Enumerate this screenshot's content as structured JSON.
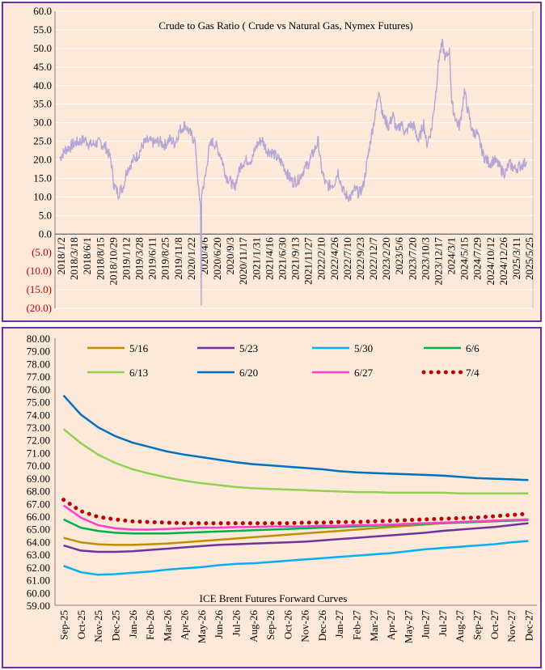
{
  "chart_data": [
    {
      "type": "line",
      "title": "Crude to Gas Ratio ( Crude vs Natural Gas, Nymex Futures)",
      "ylim": [
        -20,
        60
      ],
      "grid": true,
      "y_ticks": [
        "60.0",
        "55.0",
        "50.0",
        "45.0",
        "40.0",
        "35.0",
        "30.0",
        "25.0",
        "20.0",
        "15.0",
        "10.0",
        "5.0",
        "0.0",
        "(5.0)",
        "(10.0)",
        "(15.0)",
        "(20.0)"
      ],
      "x_tick_labels": [
        "2018/1/2",
        "2018/3/18",
        "2018/6/1",
        "2018/8/15",
        "2018/10/29",
        "2019/1/12",
        "2019/3/28",
        "2019/6/11",
        "2019/8/25",
        "2019/11/8",
        "2020/1/22",
        "2020/4/6",
        "2020/6/20",
        "2020/9/3",
        "2020/11/17",
        "2021/1/31",
        "2021/4/16",
        "2021/6/30",
        "2021/9/13",
        "2021/11/27",
        "2022/2/10",
        "2022/4/26",
        "2022/7/10",
        "2022/9/23",
        "2022/12/7",
        "2023/2/20",
        "2023/5/6",
        "2023/7/20",
        "2023/10/3",
        "2023/12/17",
        "2024/3/1",
        "2024/5/15",
        "2024/7/29",
        "2024/10/12",
        "2024/12/26",
        "2025/3/11",
        "2025/5/25"
      ],
      "series": [
        {
          "color": "#b4a7d6",
          "points": [
            [
              "2018-01-02",
              20.5
            ],
            [
              "2018-02-01",
              22.5
            ],
            [
              "2018-03-01",
              23.5
            ],
            [
              "2018-04-01",
              24.5
            ],
            [
              "2018-05-01",
              25
            ],
            [
              "2018-06-01",
              25.5
            ],
            [
              "2018-07-01",
              24
            ],
            [
              "2018-08-01",
              24.5
            ],
            [
              "2018-09-01",
              24.5
            ],
            [
              "2018-10-01",
              23.5
            ],
            [
              "2018-11-01",
              20
            ],
            [
              "2018-11-20",
              13
            ],
            [
              "2018-12-15",
              11
            ],
            [
              "2019-01-15",
              13
            ],
            [
              "2019-02-01",
              17
            ],
            [
              "2019-03-15",
              20
            ],
            [
              "2019-04-15",
              21.5
            ],
            [
              "2019-05-15",
              24.5
            ],
            [
              "2019-06-15",
              25
            ],
            [
              "2019-07-15",
              24.5
            ],
            [
              "2019-08-15",
              25
            ],
            [
              "2019-09-15",
              24
            ],
            [
              "2019-10-15",
              25.5
            ],
            [
              "2019-11-15",
              24.5
            ],
            [
              "2019-12-15",
              28
            ],
            [
              "2020-01-15",
              29.5
            ],
            [
              "2020-02-15",
              27
            ],
            [
              "2020-03-15",
              25
            ],
            [
              "2020-04-01",
              13
            ],
            [
              "2020-04-15",
              8
            ],
            [
              "2020-04-20",
              -19.5
            ],
            [
              "2020-04-22",
              11
            ],
            [
              "2020-05-15",
              15.5
            ],
            [
              "2020-06-01",
              22
            ],
            [
              "2020-06-20",
              25
            ],
            [
              "2020-07-15",
              24
            ],
            [
              "2020-08-15",
              21
            ],
            [
              "2020-09-15",
              15.5
            ],
            [
              "2020-10-15",
              14
            ],
            [
              "2020-11-01",
              12
            ],
            [
              "2020-11-17",
              15
            ],
            [
              "2020-12-15",
              19
            ],
            [
              "2021-01-15",
              20
            ],
            [
              "2021-02-15",
              20
            ],
            [
              "2021-03-15",
              24
            ],
            [
              "2021-04-15",
              25.5
            ],
            [
              "2021-05-15",
              22.5
            ],
            [
              "2021-06-15",
              22
            ],
            [
              "2021-07-15",
              20.5
            ],
            [
              "2021-08-15",
              19
            ],
            [
              "2021-09-15",
              16
            ],
            [
              "2021-10-15",
              14
            ],
            [
              "2021-11-15",
              14.5
            ],
            [
              "2021-12-15",
              17
            ],
            [
              "2022-01-15",
              19
            ],
            [
              "2022-02-15",
              22
            ],
            [
              "2022-03-15",
              25
            ],
            [
              "2022-04-01",
              18
            ],
            [
              "2022-04-26",
              13.5
            ],
            [
              "2022-05-15",
              13
            ],
            [
              "2022-06-15",
              13.5
            ],
            [
              "2022-07-10",
              17
            ],
            [
              "2022-08-01",
              13
            ],
            [
              "2022-08-20",
              10.5
            ],
            [
              "2022-09-23",
              10
            ],
            [
              "2022-10-20",
              12
            ],
            [
              "2022-11-15",
              11
            ],
            [
              "2022-12-07",
              13
            ],
            [
              "2023-01-01",
              20
            ],
            [
              "2023-01-25",
              27
            ],
            [
              "2023-02-20",
              33
            ],
            [
              "2023-03-10",
              39.5
            ],
            [
              "2023-04-01",
              32
            ],
            [
              "2023-05-06",
              29
            ],
            [
              "2023-06-01",
              32
            ],
            [
              "2023-06-25",
              27.5
            ],
            [
              "2023-07-20",
              30
            ],
            [
              "2023-08-15",
              27
            ],
            [
              "2023-09-10",
              29.5
            ],
            [
              "2023-10-03",
              29
            ],
            [
              "2023-11-01",
              25
            ],
            [
              "2023-12-01",
              30
            ],
            [
              "2023-12-17",
              24
            ],
            [
              "2024-01-15",
              28
            ],
            [
              "2024-02-10",
              38
            ],
            [
              "2024-03-01",
              48
            ],
            [
              "2024-03-20",
              51
            ],
            [
              "2024-04-10",
              47
            ],
            [
              "2024-05-01",
              50
            ],
            [
              "2024-05-15",
              35
            ],
            [
              "2024-06-15",
              30
            ],
            [
              "2024-07-01",
              29
            ],
            [
              "2024-07-29",
              38.5
            ],
            [
              "2024-08-20",
              33
            ],
            [
              "2024-09-15",
              27.5
            ],
            [
              "2024-10-12",
              27
            ],
            [
              "2024-11-01",
              24
            ],
            [
              "2024-11-20",
              21
            ],
            [
              "2024-12-26",
              19
            ],
            [
              "2025-01-20",
              20
            ],
            [
              "2025-02-10",
              19
            ],
            [
              "2025-03-11",
              17
            ],
            [
              "2025-04-01",
              16.5
            ],
            [
              "2025-04-20",
              19
            ],
            [
              "2025-05-25",
              17.5
            ],
            [
              "2025-07-01",
              18.5
            ],
            [
              "2025-08-01",
              19.5
            ]
          ]
        }
      ]
    },
    {
      "type": "line",
      "title": "ICE Brent Futures Forward Curves",
      "ylim": [
        59,
        80
      ],
      "grid": false,
      "legend_position": "top",
      "categories": [
        "Sep-25",
        "Oct-25",
        "Nov-25",
        "Dec-25",
        "Jan-26",
        "Feb-26",
        "Mar-26",
        "Apr-26",
        "May-26",
        "Jun-26",
        "Jul-26",
        "Aug-26",
        "Sep-26",
        "Oct-26",
        "Nov-26",
        "Dec-26",
        "Jan-27",
        "Feb-27",
        "Mar-27",
        "Apr-27",
        "May-27",
        "Jun-27",
        "Jul-27",
        "Aug-27",
        "Sep-27",
        "Oct-27",
        "Nov-27",
        "Dec-27"
      ],
      "y_ticks": [
        "80.00",
        "79.00",
        "78.00",
        "77.00",
        "76.00",
        "75.00",
        "74.00",
        "73.00",
        "72.00",
        "71.00",
        "70.00",
        "69.00",
        "68.00",
        "67.00",
        "66.00",
        "65.00",
        "64.00",
        "63.00",
        "62.00",
        "61.00",
        "60.00",
        "59.00"
      ],
      "series": [
        {
          "name": "5/16",
          "color": "#bf8f00",
          "dotted": false,
          "values": [
            64.3,
            63.95,
            63.8,
            63.75,
            63.75,
            63.8,
            63.85,
            63.95,
            64.05,
            64.15,
            64.25,
            64.35,
            64.45,
            64.55,
            64.65,
            64.75,
            64.85,
            64.95,
            65.05,
            65.15,
            65.25,
            65.35,
            65.45,
            65.55,
            65.6,
            65.65,
            65.7,
            65.75
          ]
        },
        {
          "name": "5/23",
          "color": "#7030a0",
          "dotted": false,
          "values": [
            63.7,
            63.3,
            63.2,
            63.2,
            63.25,
            63.35,
            63.45,
            63.55,
            63.65,
            63.75,
            63.8,
            63.85,
            63.9,
            63.95,
            64.0,
            64.1,
            64.2,
            64.3,
            64.4,
            64.5,
            64.6,
            64.7,
            64.85,
            64.95,
            65.05,
            65.15,
            65.3,
            65.45
          ]
        },
        {
          "name": "5/30",
          "color": "#00b0f0",
          "dotted": false,
          "values": [
            62.1,
            61.6,
            61.4,
            61.45,
            61.55,
            61.65,
            61.8,
            61.9,
            62.0,
            62.15,
            62.25,
            62.3,
            62.4,
            62.5,
            62.6,
            62.7,
            62.8,
            62.9,
            63.0,
            63.1,
            63.25,
            63.4,
            63.5,
            63.6,
            63.7,
            63.8,
            63.95,
            64.05
          ]
        },
        {
          "name": "6/6",
          "color": "#00b050",
          "dotted": false,
          "values": [
            65.75,
            65.1,
            64.85,
            64.7,
            64.65,
            64.65,
            64.65,
            64.7,
            64.75,
            64.8,
            64.85,
            64.9,
            64.95,
            65.0,
            65.05,
            65.1,
            65.15,
            65.2,
            65.25,
            65.3,
            65.35,
            65.4,
            65.45,
            65.5,
            65.55,
            65.6,
            65.65,
            65.7
          ]
        },
        {
          "name": "6/13",
          "color": "#92d050",
          "dotted": false,
          "values": [
            72.85,
            71.75,
            70.85,
            70.2,
            69.7,
            69.35,
            69.05,
            68.8,
            68.6,
            68.45,
            68.3,
            68.2,
            68.15,
            68.1,
            68.05,
            68.0,
            67.95,
            67.9,
            67.9,
            67.85,
            67.85,
            67.85,
            67.85,
            67.8,
            67.8,
            67.8,
            67.8,
            67.8
          ]
        },
        {
          "name": "6/20",
          "color": "#0070c0",
          "dotted": false,
          "values": [
            75.5,
            74.0,
            73.0,
            72.3,
            71.8,
            71.45,
            71.1,
            70.85,
            70.65,
            70.45,
            70.25,
            70.1,
            70.0,
            69.9,
            69.8,
            69.7,
            69.55,
            69.45,
            69.4,
            69.35,
            69.3,
            69.25,
            69.2,
            69.1,
            69.0,
            68.95,
            68.9,
            68.85
          ]
        },
        {
          "name": "6/27",
          "color": "#ff3fc8",
          "dotted": false,
          "values": [
            66.85,
            65.9,
            65.3,
            65.05,
            64.95,
            64.95,
            65.0,
            65.05,
            65.1,
            65.1,
            65.15,
            65.15,
            65.2,
            65.2,
            65.2,
            65.25,
            65.25,
            65.3,
            65.3,
            65.35,
            65.4,
            65.45,
            65.5,
            65.55,
            65.6,
            65.65,
            65.7,
            65.75
          ]
        },
        {
          "name": "7/4",
          "color": "#c00000",
          "dotted": true,
          "values": [
            67.3,
            66.4,
            65.95,
            65.75,
            65.6,
            65.55,
            65.5,
            65.45,
            65.45,
            65.45,
            65.45,
            65.45,
            65.45,
            65.45,
            65.5,
            65.5,
            65.55,
            65.55,
            65.6,
            65.65,
            65.7,
            65.75,
            65.8,
            65.85,
            65.9,
            66.0,
            66.1,
            66.2
          ]
        }
      ]
    }
  ]
}
